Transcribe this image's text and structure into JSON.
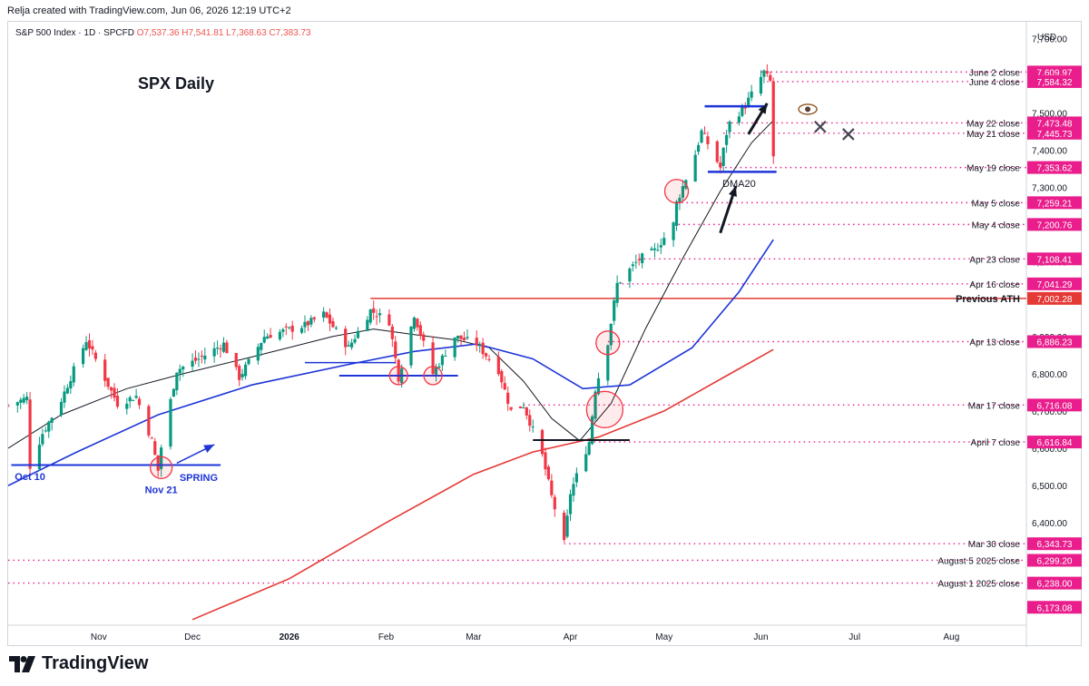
{
  "attribution": "Relja created with TradingView.com, Jun 06, 2026 12:19 UTC+2",
  "symbol": {
    "name": "S&P 500 Index · 1D · SPCFD",
    "ohlc": "O7,537.36  H7,541.81  L7,368.63  C7,383.73"
  },
  "footer": {
    "brand": "TradingView"
  },
  "chart_data": {
    "type": "candlestick",
    "title": "SPX Daily",
    "currency": "USD",
    "ylim": [
      6125,
      7740
    ],
    "y_ticks": [
      6400,
      6500,
      6600,
      6700,
      6800,
      6900,
      7000,
      7100,
      7200,
      7300,
      7400,
      7500,
      7600,
      7700
    ],
    "y_tick_labels": [
      "6,400.00",
      "6,500.00",
      "6,600.00",
      "6,700.00",
      "6,800.00",
      "6,900.00",
      "7,000.00",
      "7,100.00",
      "7,200.00",
      "7,300.00",
      "7,400.00",
      "7,500.00",
      "7,600.00",
      "7,700.00"
    ],
    "x_tick_labels": [
      {
        "label": "Nov",
        "date": "2025-11-01"
      },
      {
        "label": "Dec",
        "date": "2025-12-01"
      },
      {
        "label": "2026",
        "date": "2026-01-01",
        "bold": true
      },
      {
        "label": "Feb",
        "date": "2026-02-01"
      },
      {
        "label": "Mar",
        "date": "2026-03-01"
      },
      {
        "label": "Apr",
        "date": "2026-04-01"
      },
      {
        "label": "May",
        "date": "2026-05-01"
      },
      {
        "label": "Jun",
        "date": "2026-06-01"
      },
      {
        "label": "Jul",
        "date": "2026-07-01"
      },
      {
        "label": "Aug",
        "date": "2026-08-01"
      }
    ],
    "x_range": [
      "2025-10-03",
      "2026-08-25"
    ],
    "price_lines": [
      {
        "label": "June 2 close",
        "value": 7609.97,
        "price_label": "7,609.97",
        "color": "#e91e8c",
        "start": "2026-06-01"
      },
      {
        "label": "June 4 close",
        "value": 7584.32,
        "price_label": "7,584.32",
        "color": "#e91e8c",
        "start": "2026-06-03"
      },
      {
        "label": "May 22 close",
        "value": 7473.48,
        "price_label": "7,473.48",
        "color": "#e91e8c",
        "start": "2026-05-21"
      },
      {
        "label": "May 21 close",
        "value": 7445.73,
        "price_label": "7,445.73",
        "color": "#e91e8c",
        "start": "2026-05-20"
      },
      {
        "label": "May 19 close",
        "value": 7353.62,
        "price_label": "7,353.62",
        "color": "#e91e8c",
        "start": "2026-05-19"
      },
      {
        "label": "May 5 close",
        "value": 7259.21,
        "price_label": "7,259.21",
        "color": "#e91e8c",
        "start": "2026-05-05"
      },
      {
        "label": "May 4 close",
        "value": 7200.76,
        "price_label": "7,200.76",
        "color": "#e91e8c",
        "start": "2026-05-04"
      },
      {
        "label": "Apr 23 close",
        "value": 7108.41,
        "price_label": "7,108.41",
        "color": "#e91e8c",
        "start": "2026-04-23"
      },
      {
        "label": "Apr 16 close",
        "value": 7041.29,
        "price_label": "7,041.29",
        "color": "#e91e8c",
        "start": "2026-04-16"
      },
      {
        "label": "Previous ATH",
        "value": 7002.28,
        "price_label": "7,002.28",
        "color": "#e53935",
        "solid": true,
        "bold": true,
        "start": "2026-01-27"
      },
      {
        "label": "Apr 13 close",
        "value": 6886.23,
        "price_label": "6,886.23",
        "color": "#e91e8c",
        "start": "2026-04-13"
      },
      {
        "label": "Mar 17 close",
        "value": 6716.08,
        "price_label": "6,716.08",
        "color": "#e91e8c",
        "start": "2026-03-17"
      },
      {
        "label": "April 7 close",
        "value": 6616.84,
        "price_label": "6,616.84",
        "color": "#e91e8c",
        "start": "2026-04-07"
      },
      {
        "label": "Mar 30 close",
        "value": 6343.73,
        "price_label": "6,343.73",
        "color": "#e91e8c",
        "start": "2026-03-30"
      },
      {
        "label": "August 5 2025 close",
        "value": 6299.2,
        "price_label": "6,299.20",
        "color": "#e91e8c",
        "start": "2025-10-03"
      },
      {
        "label": "August 1 2025 close",
        "value": 6238.0,
        "price_label": "6,238.00",
        "color": "#e91e8c",
        "start": "2025-10-03"
      }
    ],
    "extra_price_labels": [
      {
        "value": 6173.08,
        "price_label": "6,173.08",
        "color": "#e91e8c"
      }
    ],
    "candles_anchor": {
      "start": "2025-10-03",
      "end": "2026-06-05"
    },
    "close_path": [
      [
        "2025-10-03",
        6715
      ],
      [
        "2025-10-09",
        6735
      ],
      [
        "2025-10-10",
        6552
      ],
      [
        "2025-10-14",
        6640
      ],
      [
        "2025-10-20",
        6730
      ],
      [
        "2025-10-28",
        6890
      ],
      [
        "2025-11-04",
        6770
      ],
      [
        "2025-11-07",
        6720
      ],
      [
        "2025-11-13",
        6740
      ],
      [
        "2025-11-18",
        6620
      ],
      [
        "2025-11-20",
        6540
      ],
      [
        "2025-11-21",
        6603
      ],
      [
        "2025-11-26",
        6810
      ],
      [
        "2025-12-03",
        6840
      ],
      [
        "2025-12-11",
        6880
      ],
      [
        "2025-12-16",
        6790
      ],
      [
        "2025-12-24",
        6900
      ],
      [
        "2026-01-06",
        6930
      ],
      [
        "2026-01-12",
        6960
      ],
      [
        "2026-01-20",
        6870
      ],
      [
        "2026-01-27",
        6970
      ],
      [
        "2026-02-02",
        6940
      ],
      [
        "2026-02-05",
        6790
      ],
      [
        "2026-02-10",
        6960
      ],
      [
        "2026-02-16",
        6800
      ],
      [
        "2026-02-23",
        6900
      ],
      [
        "2026-03-02",
        6880
      ],
      [
        "2026-03-09",
        6810
      ],
      [
        "2026-03-13",
        6700
      ],
      [
        "2026-03-17",
        6716
      ],
      [
        "2026-03-23",
        6580
      ],
      [
        "2026-03-26",
        6470
      ],
      [
        "2026-03-30",
        6344
      ],
      [
        "2026-04-01",
        6480
      ],
      [
        "2026-04-07",
        6617
      ],
      [
        "2026-04-09",
        6760
      ],
      [
        "2026-04-13",
        6886
      ],
      [
        "2026-04-16",
        7041
      ],
      [
        "2026-04-23",
        7108
      ],
      [
        "2026-04-28",
        7130
      ],
      [
        "2026-05-04",
        7201
      ],
      [
        "2026-05-05",
        7259
      ],
      [
        "2026-05-11",
        7390
      ],
      [
        "2026-05-13",
        7450
      ],
      [
        "2026-05-19",
        7354
      ],
      [
        "2026-05-21",
        7446
      ],
      [
        "2026-05-22",
        7473
      ],
      [
        "2026-05-27",
        7520
      ],
      [
        "2026-06-02",
        7610
      ],
      [
        "2026-06-04",
        7584
      ],
      [
        "2026-06-05",
        7384
      ]
    ],
    "indicators": [
      {
        "name": "DMA20",
        "color": "#131722",
        "points": [
          [
            "2025-10-03",
            6600
          ],
          [
            "2025-10-20",
            6690
          ],
          [
            "2025-11-10",
            6760
          ],
          [
            "2025-11-28",
            6800
          ],
          [
            "2025-12-20",
            6845
          ],
          [
            "2026-01-15",
            6900
          ],
          [
            "2026-01-28",
            6920
          ],
          [
            "2026-02-10",
            6905
          ],
          [
            "2026-02-24",
            6890
          ],
          [
            "2026-03-06",
            6870
          ],
          [
            "2026-03-17",
            6780
          ],
          [
            "2026-03-26",
            6680
          ],
          [
            "2026-04-04",
            6620
          ],
          [
            "2026-04-14",
            6720
          ],
          [
            "2026-04-25",
            6920
          ],
          [
            "2026-05-07",
            7110
          ],
          [
            "2026-05-19",
            7290
          ],
          [
            "2026-05-29",
            7420
          ],
          [
            "2026-06-05",
            7480
          ]
        ]
      },
      {
        "name": "",
        "color": "#1e35d8",
        "points": [
          [
            "2025-10-03",
            6500
          ],
          [
            "2025-10-25",
            6590
          ],
          [
            "2025-11-20",
            6690
          ],
          [
            "2025-12-20",
            6770
          ],
          [
            "2026-01-20",
            6825
          ],
          [
            "2026-02-10",
            6860
          ],
          [
            "2026-03-02",
            6880
          ],
          [
            "2026-03-20",
            6840
          ],
          [
            "2026-04-05",
            6760
          ],
          [
            "2026-04-20",
            6770
          ],
          [
            "2026-05-10",
            6870
          ],
          [
            "2026-05-25",
            7020
          ],
          [
            "2026-06-05",
            7160
          ]
        ]
      },
      {
        "name": "",
        "color": "#e53935",
        "points": [
          [
            "2025-12-01",
            6140
          ],
          [
            "2026-01-01",
            6250
          ],
          [
            "2026-02-01",
            6400
          ],
          [
            "2026-03-01",
            6530
          ],
          [
            "2026-03-20",
            6590
          ],
          [
            "2026-04-10",
            6630
          ],
          [
            "2026-05-01",
            6700
          ],
          [
            "2026-05-20",
            6790
          ],
          [
            "2026-06-05",
            6865
          ]
        ]
      }
    ],
    "annotations": {
      "labels": [
        {
          "text": "Oct 10",
          "date": "2025-10-10",
          "price": 6515,
          "color": "#1e35d8"
        },
        {
          "text": "Nov 21",
          "date": "2025-11-21",
          "price": 6480,
          "color": "#1e35d8"
        },
        {
          "text": "SPRING",
          "date": "2025-12-03",
          "price": 6512,
          "color": "#1e35d8"
        },
        {
          "text": "DMA20",
          "date": "2026-05-25",
          "price": 7302,
          "color": "#131722"
        }
      ]
    }
  }
}
